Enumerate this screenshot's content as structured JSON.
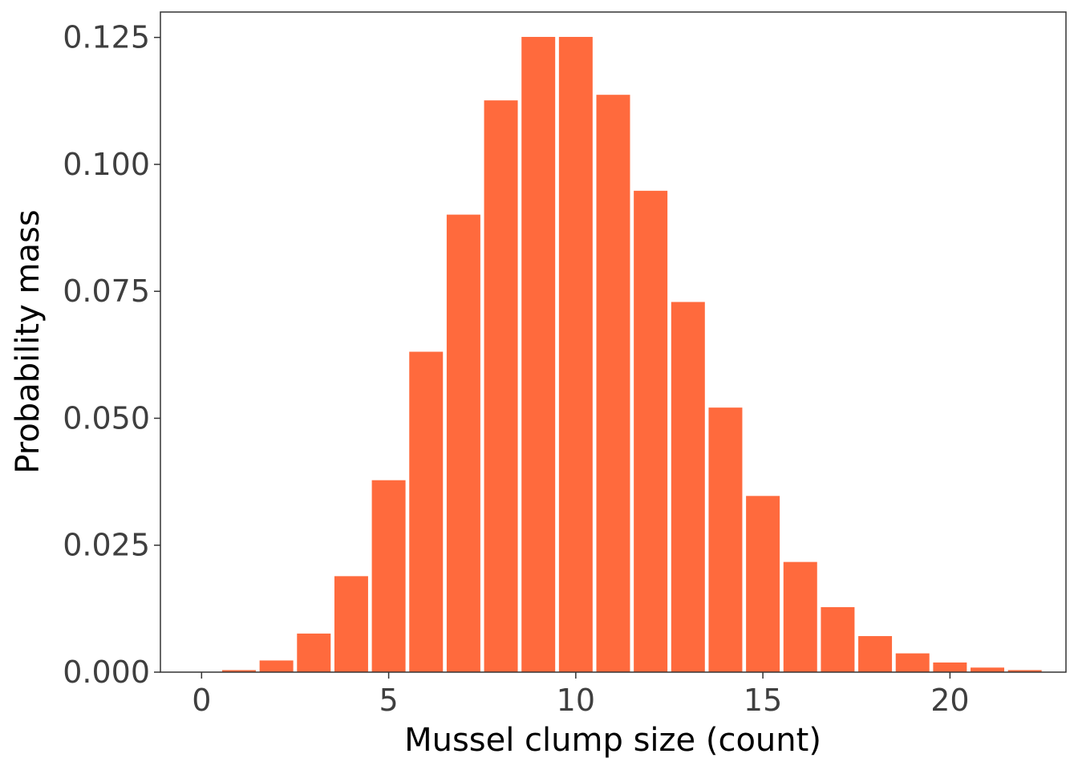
{
  "chart_data": {
    "type": "bar",
    "title": "",
    "xlabel": "Mussel clump size (count)",
    "ylabel": "Probability mass",
    "x": [
      0,
      1,
      2,
      3,
      4,
      5,
      6,
      7,
      8,
      9,
      10,
      11,
      12,
      13,
      14,
      15,
      16,
      17,
      18,
      19,
      20,
      21,
      22
    ],
    "values": [
      0.0,
      0.0004,
      0.0023,
      0.0076,
      0.0189,
      0.0378,
      0.0631,
      0.0901,
      0.1126,
      0.1251,
      0.1251,
      0.1137,
      0.0948,
      0.0729,
      0.0521,
      0.0347,
      0.0217,
      0.0128,
      0.0071,
      0.0037,
      0.0019,
      0.0009,
      0.0004
    ],
    "xlim": [
      -1.1,
      23.1
    ],
    "ylim": [
      0,
      0.13
    ],
    "xticks": [
      0,
      5,
      10,
      15,
      20
    ],
    "xtick_labels": [
      "0",
      "5",
      "10",
      "15",
      "20"
    ],
    "yticks": [
      0,
      0.025,
      0.05,
      0.075,
      0.1,
      0.125
    ],
    "ytick_labels": [
      "0.000",
      "0.025",
      "0.050",
      "0.075",
      "0.100",
      "0.125"
    ],
    "grid": false,
    "legend": "none",
    "bar_color": "#ff6a3d",
    "panel_border_color": "#333333"
  }
}
